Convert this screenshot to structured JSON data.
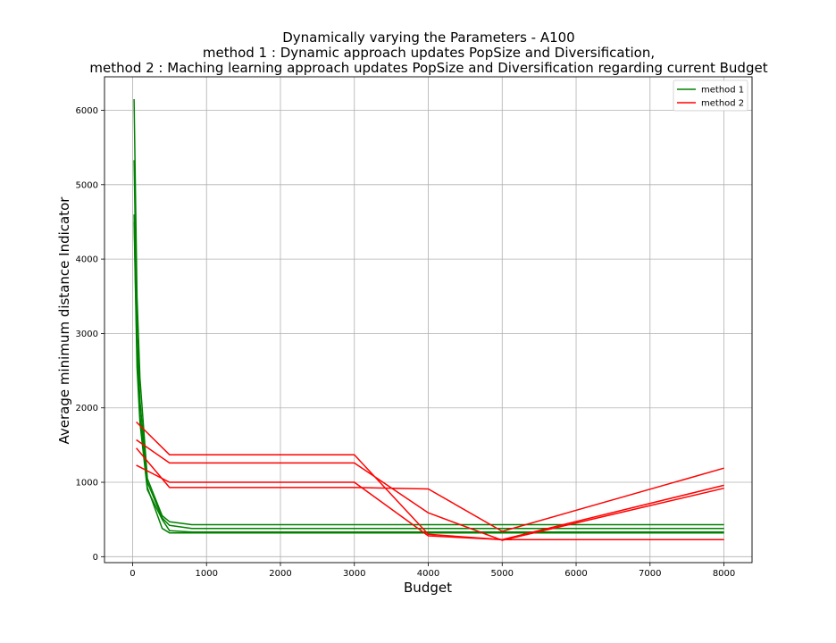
{
  "chart_data": {
    "type": "line",
    "title_lines": [
      "Dynamically varying the Parameters  - A100",
      "method 1 : Dynamic approach updates PopSize and Diversification,",
      "method 2 : Maching learning approach updates PopSize and Diversification regarding current Budget"
    ],
    "xlabel": "Budget",
    "ylabel": "Average minimum distance Indicator",
    "xlim": [
      -380,
      8380
    ],
    "ylim": [
      -80,
      6450
    ],
    "xticks": [
      0,
      1000,
      2000,
      3000,
      4000,
      5000,
      6000,
      7000,
      8000
    ],
    "yticks": [
      0,
      1000,
      2000,
      3000,
      4000,
      5000,
      6000
    ],
    "grid": true,
    "legend_position": "top-right",
    "legend": [
      {
        "label": "method 1",
        "color": "#008000"
      },
      {
        "label": "method 2",
        "color": "#ff0000"
      }
    ],
    "series": [
      {
        "group": "method 1",
        "color": "#008000",
        "x": [
          20,
          60,
          100,
          200,
          400,
          500,
          800,
          1000,
          8000
        ],
        "y": [
          6150,
          3500,
          2400,
          1050,
          550,
          470,
          430,
          430,
          430
        ]
      },
      {
        "group": "method 1",
        "color": "#008000",
        "x": [
          20,
          60,
          100,
          200,
          400,
          500,
          800,
          1000,
          8000
        ],
        "y": [
          5330,
          3000,
          2100,
          1000,
          520,
          420,
          380,
          380,
          380
        ]
      },
      {
        "group": "method 1",
        "color": "#008000",
        "x": [
          20,
          60,
          100,
          200,
          400,
          500,
          800,
          1000,
          8000
        ],
        "y": [
          4600,
          2700,
          1900,
          930,
          380,
          320,
          320,
          320,
          320
        ]
      },
      {
        "group": "method 1",
        "color": "#008000",
        "x": [
          20,
          60,
          100,
          200,
          400,
          500,
          800,
          1000,
          8000
        ],
        "y": [
          4500,
          2550,
          1800,
          900,
          500,
          350,
          330,
          330,
          330
        ]
      },
      {
        "group": "method 2",
        "color": "#ff0000",
        "x": [
          50,
          500,
          3000,
          4000,
          5000,
          8000
        ],
        "y": [
          1810,
          1370,
          1370,
          300,
          230,
          230
        ]
      },
      {
        "group": "method 2",
        "color": "#ff0000",
        "x": [
          50,
          500,
          3000,
          4000,
          5000,
          8000
        ],
        "y": [
          1570,
          1260,
          1260,
          590,
          220,
          920
        ]
      },
      {
        "group": "method 2",
        "color": "#ff0000",
        "x": [
          50,
          500,
          3000,
          4000,
          5000,
          8000
        ],
        "y": [
          1460,
          930,
          930,
          910,
          340,
          1190
        ]
      },
      {
        "group": "method 2",
        "color": "#ff0000",
        "x": [
          50,
          500,
          3000,
          4000,
          5000,
          8000
        ],
        "y": [
          1230,
          1000,
          1000,
          280,
          230,
          960
        ]
      }
    ]
  }
}
